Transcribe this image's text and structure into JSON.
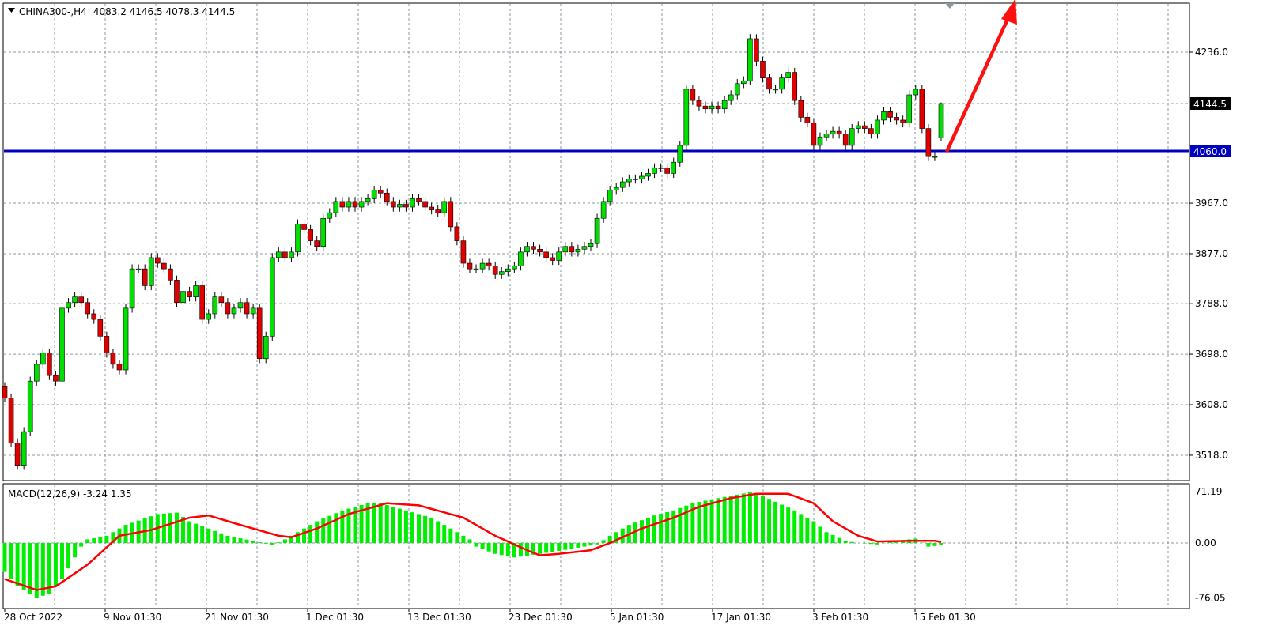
{
  "header": {
    "symbol": "CHINA300-,H4",
    "ohlc": "4083.2 4146.5 4078.3 4144.5"
  },
  "indicator": {
    "label": "MACD(12,26,9) -3.24 1.35",
    "levels": [
      "71.19",
      "0.00",
      "-76.05"
    ]
  },
  "colors": {
    "bull": "#00e000",
    "bear": "#e00000",
    "grid": "#8a96a0",
    "level": "#0000c0",
    "signal": "#ff0000",
    "hist": "#00ee00",
    "arrow": "#ff1010"
  },
  "price_axis": {
    "ticks": [
      "4236.0",
      "3967.0",
      "3877.0",
      "3788.0",
      "3698.0",
      "3608.0",
      "3518.0"
    ],
    "current_price": "4144.5",
    "level_price": "4060.0"
  },
  "time_axis": {
    "labels": [
      "28 Oct 2022",
      "9 Nov 01:30",
      "21 Nov 01:30",
      "1 Dec 01:30",
      "13 Dec 01:30",
      "23 Dec 01:30",
      "5 Jan 01:30",
      "17 Jan 01:30",
      "3 Feb 01:30",
      "15 Feb 01:30"
    ]
  },
  "chart_data": {
    "type": "candlestick",
    "ylim": [
      3480,
      4290
    ],
    "horizontal_level": 4060.0,
    "close": [
      3620,
      3540,
      3500,
      3560,
      3650,
      3680,
      3700,
      3660,
      3650,
      3780,
      3790,
      3800,
      3790,
      3770,
      3760,
      3730,
      3700,
      3680,
      3670,
      3780,
      3850,
      3850,
      3820,
      3870,
      3860,
      3850,
      3830,
      3790,
      3810,
      3800,
      3820,
      3760,
      3770,
      3800,
      3790,
      3770,
      3780,
      3790,
      3770,
      3780,
      3690,
      3730,
      3870,
      3880,
      3870,
      3880,
      3930,
      3920,
      3900,
      3890,
      3940,
      3950,
      3970,
      3960,
      3970,
      3960,
      3970,
      3975,
      3990,
      3985,
      3970,
      3960,
      3965,
      3960,
      3975,
      3970,
      3960,
      3955,
      3950,
      3970,
      3925,
      3900,
      3860,
      3850,
      3850,
      3860,
      3855,
      3840,
      3845,
      3850,
      3855,
      3880,
      3890,
      3885,
      3880,
      3870,
      3865,
      3880,
      3890,
      3880,
      3885,
      3890,
      3895,
      3940,
      3970,
      3990,
      3995,
      4005,
      4010,
      4010,
      4015,
      4020,
      4030,
      4030,
      4020,
      4040,
      4070,
      4170,
      4150,
      4140,
      4135,
      4140,
      4135,
      4150,
      4160,
      4180,
      4185,
      4260,
      4220,
      4190,
      4170,
      4170,
      4190,
      4200,
      4150,
      4120,
      4110,
      4070,
      4085,
      4090,
      4095,
      4090,
      4070,
      4100,
      4105,
      4100,
      4090,
      4115,
      4130,
      4120,
      4115,
      4110,
      4160,
      4170,
      4100,
      4050,
      4050,
      4144.5
    ],
    "last_candle": {
      "open": 4083.2,
      "high": 4146.5,
      "low": 4078.3,
      "close": 4144.5
    },
    "macd": {
      "ylim": [
        -76.05,
        71.19
      ],
      "histogram_points": [
        [
          0,
          -40
        ],
        [
          2,
          -60
        ],
        [
          5,
          -76
        ],
        [
          7,
          -70
        ],
        [
          9,
          -50
        ],
        [
          11,
          -20
        ],
        [
          12,
          -5
        ],
        [
          13,
          5
        ],
        [
          16,
          10
        ],
        [
          19,
          25
        ],
        [
          24,
          40
        ],
        [
          27,
          42
        ],
        [
          29,
          30
        ],
        [
          32,
          20
        ],
        [
          35,
          10
        ],
        [
          39,
          3
        ],
        [
          42,
          -3
        ],
        [
          44,
          5
        ],
        [
          47,
          20
        ],
        [
          49,
          30
        ],
        [
          53,
          45
        ],
        [
          57,
          55
        ],
        [
          59,
          55
        ],
        [
          63,
          45
        ],
        [
          67,
          35
        ],
        [
          70,
          20
        ],
        [
          73,
          5
        ],
        [
          74,
          -5
        ],
        [
          77,
          -15
        ],
        [
          80,
          -20
        ],
        [
          84,
          -15
        ],
        [
          89,
          -8
        ],
        [
          93,
          -2
        ],
        [
          95,
          10
        ],
        [
          98,
          25
        ],
        [
          102,
          38
        ],
        [
          105,
          45
        ],
        [
          108,
          55
        ],
        [
          112,
          62
        ],
        [
          117,
          70
        ],
        [
          119,
          65
        ],
        [
          124,
          45
        ],
        [
          127,
          30
        ],
        [
          129,
          15
        ],
        [
          132,
          3
        ],
        [
          134,
          0
        ],
        [
          137,
          -2
        ],
        [
          140,
          3
        ],
        [
          143,
          6
        ],
        [
          145,
          -5
        ],
        [
          147,
          -3.24
        ]
      ],
      "signal_points": [
        [
          0,
          -50
        ],
        [
          5,
          -65
        ],
        [
          8,
          -60
        ],
        [
          13,
          -30
        ],
        [
          18,
          10
        ],
        [
          23,
          18
        ],
        [
          29,
          35
        ],
        [
          32,
          38
        ],
        [
          37,
          25
        ],
        [
          43,
          10
        ],
        [
          45,
          8
        ],
        [
          49,
          20
        ],
        [
          54,
          40
        ],
        [
          60,
          55
        ],
        [
          65,
          52
        ],
        [
          72,
          35
        ],
        [
          77,
          10
        ],
        [
          82,
          -10
        ],
        [
          84,
          -17
        ],
        [
          87,
          -15
        ],
        [
          92,
          -10
        ],
        [
          95,
          0
        ],
        [
          100,
          20
        ],
        [
          105,
          35
        ],
        [
          109,
          50
        ],
        [
          114,
          62
        ],
        [
          118,
          68
        ],
        [
          123,
          68
        ],
        [
          127,
          55
        ],
        [
          130,
          30
        ],
        [
          134,
          10
        ],
        [
          137,
          2
        ],
        [
          142,
          3
        ],
        [
          146,
          3
        ],
        [
          147,
          1.35
        ]
      ]
    }
  }
}
